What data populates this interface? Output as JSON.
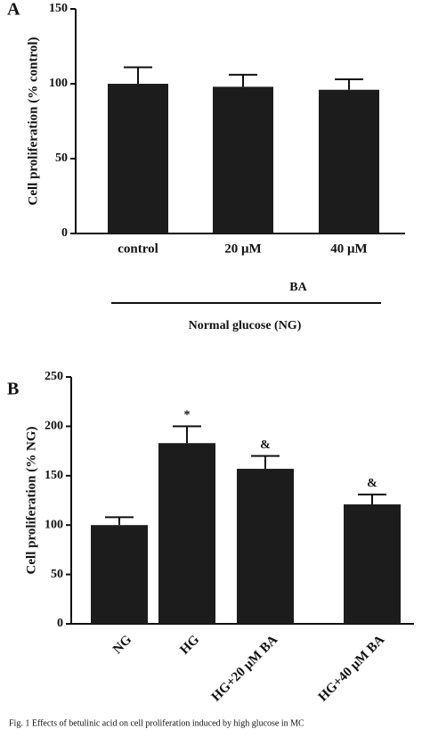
{
  "chart_data": [
    {
      "type": "bar",
      "panel_label": "A",
      "ylabel": "Cell proliferation (% control)",
      "categories": [
        "control",
        "20 μM",
        "40 μM"
      ],
      "values": [
        100,
        98,
        96
      ],
      "errors": [
        11,
        8,
        7
      ],
      "color": "#1c1c1c",
      "ylim": [
        0,
        150
      ],
      "yticks": [
        0,
        50,
        100,
        150
      ],
      "annotations": [
        "BA",
        "Normal glucose (NG)"
      ]
    },
    {
      "type": "bar",
      "panel_label": "B",
      "ylabel": "Cell proliferation (% NG)",
      "categories": [
        "NG",
        "HG",
        "HG+20 μM BA",
        "HG+40 μM BA"
      ],
      "values": [
        100,
        183,
        157,
        121
      ],
      "errors": [
        8,
        17,
        13,
        10
      ],
      "value_annotations": [
        null,
        "*",
        "&",
        "&"
      ],
      "color": "#1c1c1c",
      "ylim": [
        0,
        250
      ],
      "yticks": [
        0,
        50,
        100,
        150,
        200,
        250
      ]
    }
  ],
  "caption": "Fig. 1 Effects of betulinic acid on cell proliferation induced by high glucose in MC"
}
